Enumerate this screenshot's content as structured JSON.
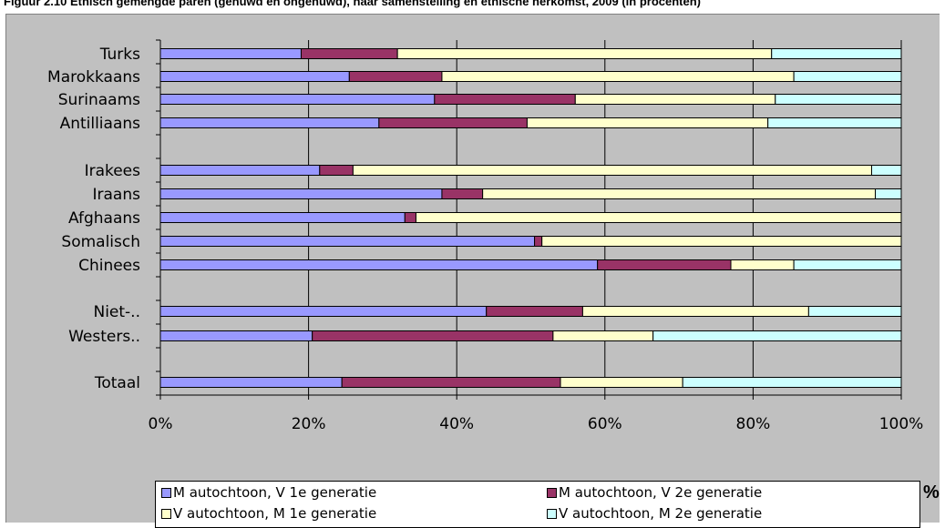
{
  "figure": {
    "title": "Figuur 2.10 Etnisch gemengde paren (gehuwd en ongehuwd), naar samenstelling en etnische herkomst, 2009 (in procenten)",
    "unit_label": "%"
  },
  "chart_data": {
    "type": "bar",
    "orientation": "horizontal",
    "stacked": "percent",
    "categories": [
      "Turks",
      "Marokkaans",
      "Surinaams",
      "Antilliaans",
      "Irakees",
      "Iraans",
      "Afghaans",
      "Somalisch",
      "Chinees",
      "Niet-..",
      "Westers..",
      "Totaal"
    ],
    "series": [
      {
        "name": "M autochtoon,  V 1e generatie",
        "color": "#9999ff",
        "values": [
          19,
          25.5,
          37,
          29.5,
          21.5,
          38,
          33,
          50.5,
          59,
          44,
          20.5,
          24.5
        ]
      },
      {
        "name": "M autochtoon,  V 2e generatie",
        "color": "#993366",
        "values": [
          13,
          12.5,
          19,
          20,
          4.5,
          5.5,
          1.5,
          1,
          18,
          13,
          32.5,
          29.5
        ]
      },
      {
        "name": "V autochtoon,  M 1e generatie",
        "color": "#ffffcc",
        "values": [
          50.5,
          47.5,
          27,
          32.5,
          70,
          53,
          65.5,
          48.5,
          8.5,
          30.5,
          13.5,
          16.5
        ]
      },
      {
        "name": "V autochtoon,  M 2e generatie",
        "color": "#ccffff",
        "values": [
          17.5,
          14.5,
          17,
          18,
          4,
          3.5,
          0,
          0,
          14.5,
          12.5,
          33.5,
          29.5
        ]
      }
    ],
    "x_ticks": [
      "0%",
      "20%",
      "40%",
      "60%",
      "80%",
      "100%"
    ],
    "xlim": [
      0,
      100
    ],
    "grid": "vertical",
    "legend_position": "bottom"
  }
}
